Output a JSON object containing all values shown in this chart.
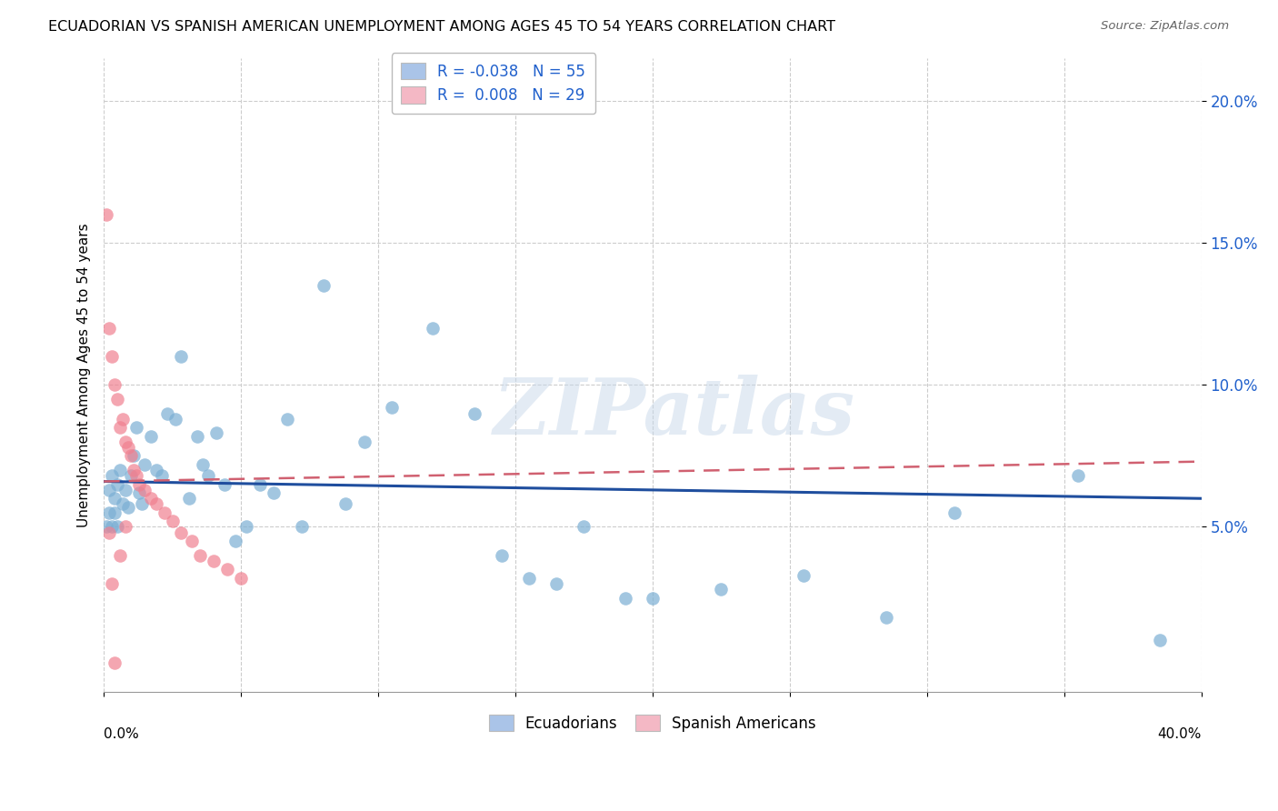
{
  "title": "ECUADORIAN VS SPANISH AMERICAN UNEMPLOYMENT AMONG AGES 45 TO 54 YEARS CORRELATION CHART",
  "source": "Source: ZipAtlas.com",
  "ylabel": "Unemployment Among Ages 45 to 54 years",
  "ecuadorians_label": "Ecuadorians",
  "spanish_label": "Spanish Americans",
  "blue_color": "#7bafd4",
  "blue_fill_color": "#aac4e8",
  "pink_color": "#f08090",
  "pink_fill_color": "#f4b8c5",
  "blue_line_color": "#1f4e9e",
  "pink_line_color": "#d06070",
  "watermark": "ZIPatlas",
  "xlim": [
    0.0,
    0.4
  ],
  "ylim": [
    -0.008,
    0.215
  ],
  "ytick_values": [
    0.05,
    0.1,
    0.15,
    0.2
  ],
  "xtick_positions": [
    0.0,
    0.05,
    0.1,
    0.15,
    0.2,
    0.25,
    0.3,
    0.35,
    0.4
  ],
  "blue_x": [
    0.001,
    0.002,
    0.002,
    0.003,
    0.003,
    0.004,
    0.004,
    0.005,
    0.005,
    0.006,
    0.007,
    0.008,
    0.009,
    0.01,
    0.011,
    0.012,
    0.013,
    0.014,
    0.015,
    0.017,
    0.019,
    0.021,
    0.023,
    0.026,
    0.028,
    0.031,
    0.034,
    0.036,
    0.038,
    0.041,
    0.044,
    0.048,
    0.052,
    0.057,
    0.062,
    0.067,
    0.072,
    0.08,
    0.088,
    0.095,
    0.105,
    0.12,
    0.135,
    0.155,
    0.175,
    0.2,
    0.225,
    0.255,
    0.285,
    0.31,
    0.355,
    0.385,
    0.145,
    0.165,
    0.19
  ],
  "blue_y": [
    0.05,
    0.063,
    0.055,
    0.05,
    0.068,
    0.06,
    0.055,
    0.065,
    0.05,
    0.07,
    0.058,
    0.063,
    0.057,
    0.068,
    0.075,
    0.085,
    0.062,
    0.058,
    0.072,
    0.082,
    0.07,
    0.068,
    0.09,
    0.088,
    0.11,
    0.06,
    0.082,
    0.072,
    0.068,
    0.083,
    0.065,
    0.045,
    0.05,
    0.065,
    0.062,
    0.088,
    0.05,
    0.135,
    0.058,
    0.08,
    0.092,
    0.12,
    0.09,
    0.032,
    0.05,
    0.025,
    0.028,
    0.033,
    0.018,
    0.055,
    0.068,
    0.01,
    0.04,
    0.03,
    0.025
  ],
  "pink_x": [
    0.001,
    0.002,
    0.003,
    0.004,
    0.005,
    0.006,
    0.007,
    0.008,
    0.009,
    0.01,
    0.011,
    0.012,
    0.013,
    0.015,
    0.017,
    0.019,
    0.022,
    0.025,
    0.028,
    0.032,
    0.035,
    0.04,
    0.045,
    0.05,
    0.002,
    0.003,
    0.004,
    0.006,
    0.008
  ],
  "pink_y": [
    0.16,
    0.12,
    0.11,
    0.1,
    0.095,
    0.085,
    0.088,
    0.08,
    0.078,
    0.075,
    0.07,
    0.068,
    0.065,
    0.063,
    0.06,
    0.058,
    0.055,
    0.052,
    0.048,
    0.045,
    0.04,
    0.038,
    0.035,
    0.032,
    0.048,
    0.03,
    0.002,
    0.04,
    0.05
  ],
  "blue_line_start_y": 0.066,
  "blue_line_end_y": 0.06,
  "pink_line_start_y": 0.066,
  "pink_line_end_y": 0.073
}
